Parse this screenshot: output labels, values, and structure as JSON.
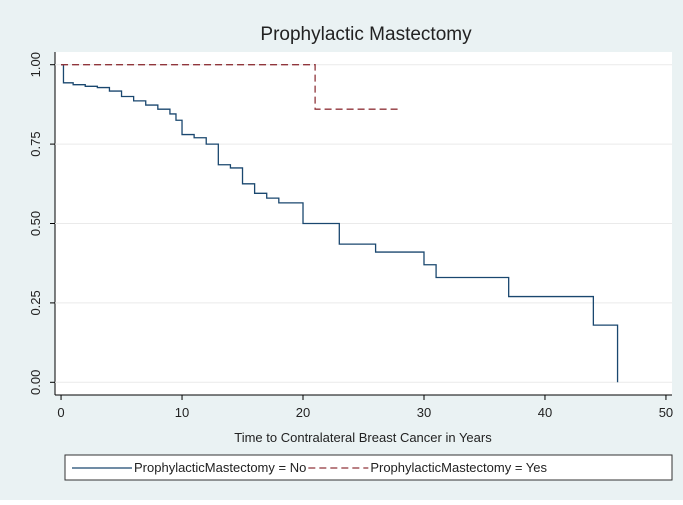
{
  "chart_data": {
    "type": "step",
    "title": "Prophylactic Mastectomy",
    "x_label": "Time to Contralateral Breast Cancer in Years",
    "xlim": [
      -0.5,
      50.5
    ],
    "xticks": [
      0,
      10,
      20,
      30,
      40,
      50
    ],
    "ylim": [
      -0.04,
      1.04
    ],
    "yticks": [
      {
        "value": 0,
        "label": "0.00"
      },
      0.25,
      {
        "value": 0.5,
        "label": "0.50"
      },
      0.75,
      {
        "value": 1,
        "label": "1.00"
      }
    ],
    "grid": true,
    "legend": "bottom",
    "series": [
      {
        "name": "ProphylacticMastectomy = No",
        "color": "#1a476f",
        "dash": false,
        "x": [
          0,
          0.2,
          1,
          2,
          3,
          4,
          5,
          6,
          7,
          8,
          9,
          9.5,
          10,
          11,
          12,
          13,
          14,
          15,
          16,
          17,
          18,
          20,
          23,
          26,
          30,
          31,
          37,
          44,
          46
        ],
        "values": [
          1,
          0.943,
          0.937,
          0.932,
          0.928,
          0.917,
          0.9,
          0.886,
          0.873,
          0.86,
          0.845,
          0.825,
          0.78,
          0.77,
          0.75,
          0.685,
          0.675,
          0.625,
          0.595,
          0.58,
          0.565,
          0.5,
          0.435,
          0.41,
          0.37,
          0.33,
          0.27,
          0.18,
          0
        ]
      },
      {
        "name": "ProphylacticMastectomy = Yes",
        "color": "#90353b",
        "dash": true,
        "x": [
          0,
          21,
          28
        ],
        "values": [
          1,
          0.86,
          0.86
        ]
      }
    ]
  }
}
